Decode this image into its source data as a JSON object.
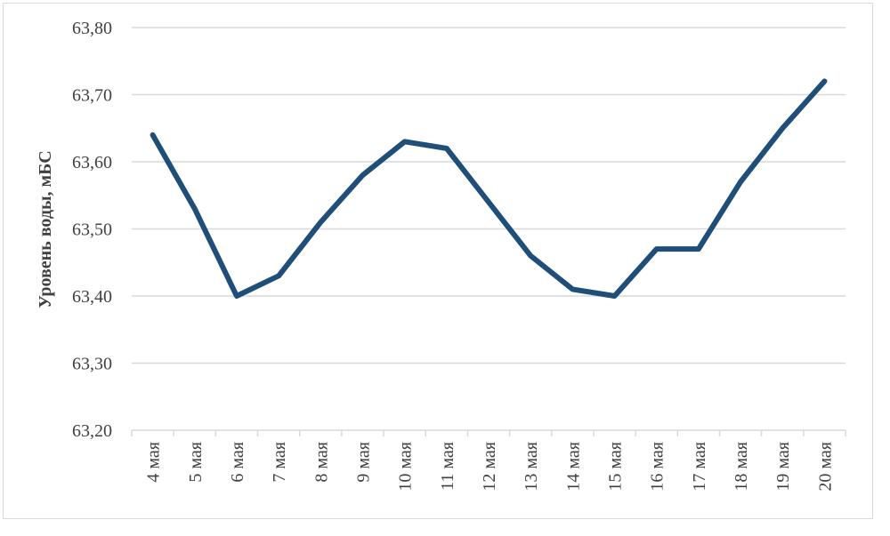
{
  "chart_data": {
    "type": "line",
    "title": "",
    "xlabel": "",
    "ylabel": "Уровень воды, мБС",
    "categories": [
      "4 мая",
      "5 мая",
      "6 мая",
      "7 мая",
      "8 мая",
      "9 мая",
      "10 мая",
      "11 мая",
      "12 мая",
      "13 мая",
      "14 мая",
      "15 мая",
      "16 мая",
      "17 мая",
      "18 мая",
      "19 мая",
      "20 мая"
    ],
    "series": [
      {
        "values": [
          63.64,
          63.53,
          63.4,
          63.43,
          63.51,
          63.58,
          63.63,
          63.62,
          63.54,
          63.46,
          63.41,
          63.4,
          63.47,
          63.47,
          63.57,
          63.65,
          63.72
        ]
      }
    ],
    "ylim": [
      63.2,
      63.8
    ],
    "yticks": [
      "63,20",
      "63,30",
      "63,40",
      "63,50",
      "63,60",
      "63,70",
      "63,80"
    ],
    "grid": true,
    "colors": {
      "line": "#1f4e79",
      "grid": "#d9d9d9",
      "text": "#404040"
    }
  }
}
